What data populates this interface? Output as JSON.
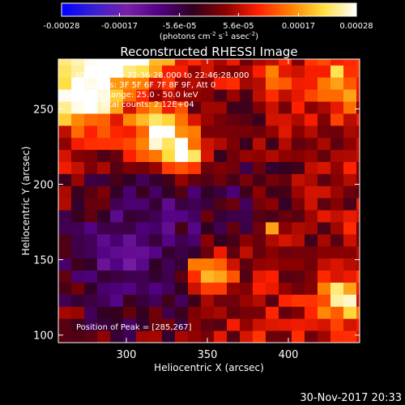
{
  "chart_data": {
    "type": "heatmap",
    "title": "Reconstructed RHESSI Image",
    "xlabel": "Heliocentric X (arcsec)",
    "ylabel": "Heliocentric Y (arcsec)",
    "xlim": [
      258,
      444
    ],
    "ylim": [
      95,
      283
    ],
    "x_ticks": [
      300,
      350,
      400
    ],
    "y_ticks": [
      100,
      150,
      200,
      250
    ],
    "colorbar": {
      "label_parts": [
        "(photons cm",
        "-2",
        " s",
        "-1",
        " asec",
        "-2",
        ")"
      ],
      "range": [
        -0.00028,
        0.00028
      ],
      "ticks": [
        {
          "value": -0.00028,
          "label": "-0.00028"
        },
        {
          "value": -0.00017,
          "label": "-0.00017"
        },
        {
          "value": -5.6e-05,
          "label": "-5.6e-05"
        },
        {
          "value": 5.6e-05,
          "label": "5.6e-05"
        },
        {
          "value": 0.00017,
          "label": "0.00017"
        },
        {
          "value": 0.00028,
          "label": "0.00028"
        }
      ],
      "colors": [
        "#0000ff",
        "#3a20d0",
        "#7a20a8",
        "#500080",
        "#300020",
        "#8a0000",
        "#ff2000",
        "#ff8000",
        "#ffe040",
        "#ffffff"
      ]
    },
    "info_lines": [
      "30-Jun-2015 22:36:28.000 to 22:46:28.000",
      "Detectors: 3F 5F 6F 7F 8F 9F, Att 0",
      "Energy Range: 25.0 - 50.0 keV",
      "Clean   Total counts: 2.12E+04"
    ],
    "peak_label": "Position of Peak = [285,267]",
    "sources": [
      {
        "x": 275,
        "y": 262,
        "sx": 16,
        "sy": 18,
        "amp": 0.00026
      },
      {
        "x": 300,
        "y": 282,
        "sx": 20,
        "sy": 8,
        "amp": 0.00024
      },
      {
        "x": 322,
        "y": 232,
        "sx": 11,
        "sy": 12,
        "amp": 0.00025
      },
      {
        "x": 338,
        "y": 220,
        "sx": 8,
        "sy": 9,
        "amp": 0.0002
      },
      {
        "x": 350,
        "y": 142,
        "sx": 10,
        "sy": 9,
        "amp": 0.00022
      },
      {
        "x": 390,
        "y": 170,
        "sx": 5,
        "sy": 5,
        "amp": 0.00014
      },
      {
        "x": 432,
        "y": 125,
        "sx": 9,
        "sy": 10,
        "amp": 0.0002
      },
      {
        "x": 430,
        "y": 265,
        "sx": 9,
        "sy": 12,
        "amp": 0.00016
      },
      {
        "x": 395,
        "y": 272,
        "sx": 6,
        "sy": 6,
        "amp": 0.0001
      },
      {
        "x": 300,
        "y": 150,
        "sx": 35,
        "sy": 40,
        "amp": -0.00016
      },
      {
        "x": 370,
        "y": 200,
        "sx": 40,
        "sy": 35,
        "amp": -8e-05
      }
    ]
  },
  "footer": {
    "date": "30-Nov-2017 20:33"
  }
}
